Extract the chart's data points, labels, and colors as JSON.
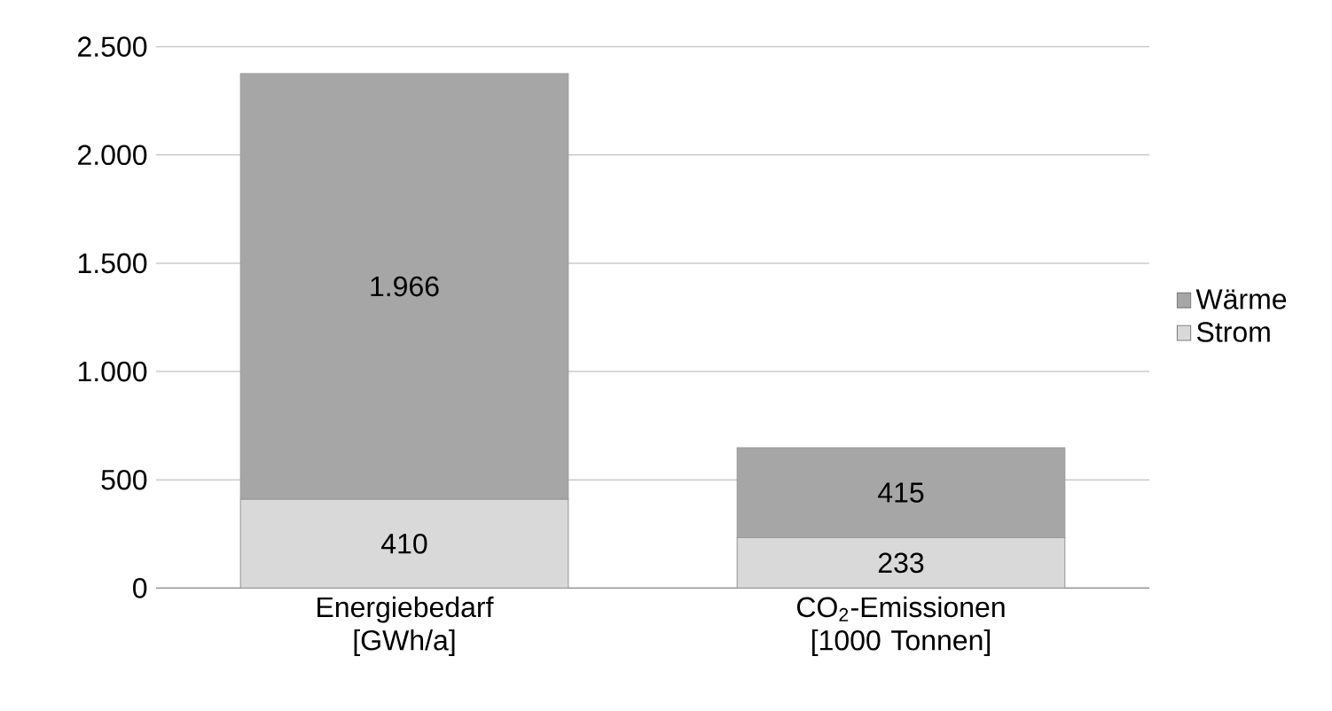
{
  "chart_data": {
    "type": "bar",
    "stacked": true,
    "categories": [
      "Energiebedarf [GWh/a]",
      "CO$_{2}$-Emissionen [1000 Tonnen]"
    ],
    "series": [
      {
        "name": "Strom",
        "color": "#d9d9d9",
        "values": [
          410,
          233
        ],
        "value_labels": [
          "410",
          "233"
        ]
      },
      {
        "name": "Wärme",
        "color": "#a6a6a6",
        "values": [
          1966,
          415
        ],
        "value_labels": [
          "1.966",
          "415"
        ]
      }
    ],
    "ylim": [
      0,
      2500
    ],
    "yticks": [
      0,
      {
        "value": 500,
        "label": "500"
      },
      {
        "value": 1000,
        "label": "1.000"
      },
      {
        "value": 1500,
        "label": "1.500"
      },
      {
        "value": 2000,
        "label": "2.000"
      },
      {
        "value": 2500,
        "label": "2.500"
      }
    ],
    "grid": "y",
    "legend": "right"
  }
}
